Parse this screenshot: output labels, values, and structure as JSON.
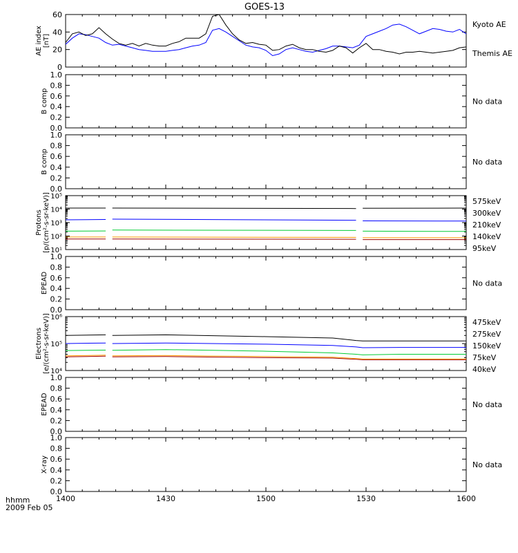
{
  "title": "GOES-13",
  "x_axis": {
    "tick_labels": [
      "1400",
      "1430",
      "1500",
      "1530",
      "1600"
    ],
    "unit_label": "hhmm",
    "date_label": "2009 Feb 05"
  },
  "no_data_label": "No data",
  "chart_data": [
    {
      "type": "line",
      "panel": "ae_index",
      "ylabel": [
        "AE index",
        "[nT]"
      ],
      "ylim": [
        0,
        60
      ],
      "yticks": [
        0,
        20,
        40,
        60
      ],
      "x": [
        "14:00",
        "14:02",
        "14:04",
        "14:06",
        "14:08",
        "14:10",
        "14:12",
        "14:14",
        "14:16",
        "14:18",
        "14:20",
        "14:22",
        "14:24",
        "14:26",
        "14:28",
        "14:30",
        "14:32",
        "14:34",
        "14:36",
        "14:38",
        "14:40",
        "14:42",
        "14:44",
        "14:46",
        "14:48",
        "14:50",
        "14:52",
        "14:54",
        "14:56",
        "14:58",
        "15:00",
        "15:02",
        "15:04",
        "15:06",
        "15:08",
        "15:10",
        "15:12",
        "15:14",
        "15:16",
        "15:18",
        "15:20",
        "15:22",
        "15:24",
        "15:26",
        "15:28",
        "15:30",
        "15:32",
        "15:34",
        "15:36",
        "15:38",
        "15:40",
        "15:42",
        "15:44",
        "15:46",
        "15:48",
        "15:50",
        "15:52",
        "15:54",
        "15:56",
        "15:58",
        "16:00"
      ],
      "series": [
        {
          "name": "Kyoto AE",
          "color": "#0000ff",
          "values": [
            26,
            33,
            38,
            37,
            35,
            33,
            28,
            25,
            26,
            24,
            22,
            20,
            19,
            18,
            18,
            18,
            19,
            20,
            22,
            24,
            25,
            28,
            42,
            44,
            40,
            35,
            30,
            25,
            23,
            22,
            19,
            13,
            15,
            20,
            22,
            20,
            18,
            17,
            19,
            21,
            24,
            24,
            23,
            22,
            25,
            35,
            38,
            41,
            44,
            48,
            49,
            46,
            42,
            38,
            41,
            44,
            43,
            41,
            40,
            43,
            38
          ]
        },
        {
          "name": "Themis AE",
          "color": "#000000",
          "values": [
            28,
            38,
            40,
            36,
            38,
            45,
            38,
            32,
            27,
            25,
            27,
            24,
            27,
            25,
            24,
            24,
            27,
            29,
            33,
            33,
            33,
            38,
            58,
            60,
            48,
            38,
            31,
            27,
            28,
            26,
            25,
            19,
            20,
            24,
            26,
            22,
            20,
            20,
            18,
            17,
            19,
            24,
            22,
            16,
            22,
            27,
            20,
            20,
            18,
            17,
            15,
            17,
            17,
            18,
            17,
            16,
            17,
            18,
            19,
            22,
            23
          ]
        }
      ]
    },
    {
      "type": "line",
      "panel": "b_comp_1",
      "ylabel": [
        "B comp"
      ],
      "ylim": [
        0,
        1
      ],
      "yticks": [
        "0.0",
        "0.2",
        "0.4",
        "0.6",
        "0.8",
        "1.0"
      ],
      "status": "No data",
      "series": []
    },
    {
      "type": "line",
      "panel": "b_comp_2",
      "ylabel": [
        "B comp"
      ],
      "ylim": [
        0,
        1
      ],
      "yticks": [
        "0.0",
        "0.2",
        "0.4",
        "0.6",
        "0.8",
        "1.0"
      ],
      "status": "No data",
      "series": []
    },
    {
      "type": "line",
      "panel": "protons",
      "ylabel": [
        "Protons",
        "[p/(cm²-s-sr-keV)]"
      ],
      "scale": "log",
      "ylim": [
        10,
        100000
      ],
      "ytick_exponents": [
        1,
        2,
        3,
        4,
        5
      ],
      "x": [
        "14:00",
        "14:12",
        "14:14",
        "15:27",
        "15:29",
        "16:00"
      ],
      "series": [
        {
          "name": "575keV",
          "color": "#a00000",
          "values": [
            60,
            60,
            60,
            58,
            55,
            55
          ]
        },
        {
          "name": "300keV",
          "color": "#ff9900",
          "values": [
            85,
            85,
            85,
            80,
            75,
            75
          ]
        },
        {
          "name": "210keV",
          "color": "#00cc33",
          "values": [
            230,
            240,
            280,
            260,
            230,
            220
          ]
        },
        {
          "name": "140keV",
          "color": "#0000ff",
          "values": [
            1600,
            1700,
            1800,
            1500,
            1350,
            1300
          ]
        },
        {
          "name": "95keV",
          "color": "#000000",
          "values": [
            12000,
            12000,
            12000,
            11000,
            11500,
            12000
          ]
        }
      ]
    },
    {
      "type": "line",
      "panel": "epead_1",
      "ylabel": [
        "EPEAD"
      ],
      "ylim": [
        0,
        1
      ],
      "yticks": [
        "0.0",
        "0.2",
        "0.4",
        "0.6",
        "0.8",
        "1.0"
      ],
      "status": "No data",
      "series": []
    },
    {
      "type": "line",
      "panel": "electrons",
      "ylabel": [
        "Electrons",
        "[e/(cm²-s-sr-keV)]"
      ],
      "scale": "log",
      "ylim": [
        10000,
        1000000
      ],
      "ytick_exponents": [
        4,
        5,
        6
      ],
      "x": [
        "14:00",
        "14:12",
        "14:14",
        "14:30",
        "15:00",
        "15:20",
        "15:27",
        "15:29",
        "15:40",
        "16:00"
      ],
      "series": [
        {
          "name": "475keV",
          "color": "#a00000",
          "values": [
            32000,
            34000,
            32000,
            33000,
            30000,
            29000,
            26000,
            25000,
            25000,
            25000
          ]
        },
        {
          "name": "275keV",
          "color": "#ff9900",
          "values": [
            35000,
            37000,
            35000,
            36000,
            33000,
            31000,
            28000,
            27000,
            27000,
            27000
          ]
        },
        {
          "name": "150keV",
          "color": "#00cc33",
          "values": [
            55000,
            57000,
            56000,
            60000,
            52000,
            45000,
            40000,
            38000,
            40000,
            40000
          ]
        },
        {
          "name": "75keV",
          "color": "#0000ff",
          "values": [
            100000,
            105000,
            100000,
            105000,
            95000,
            85000,
            75000,
            70000,
            72000,
            72000
          ]
        },
        {
          "name": "40keV",
          "color": "#000000",
          "values": [
            200000,
            210000,
            200000,
            210000,
            180000,
            160000,
            130000,
            125000,
            125000,
            125000
          ]
        }
      ]
    },
    {
      "type": "line",
      "panel": "epead_2",
      "ylabel": [
        "EPEAD"
      ],
      "ylim": [
        0,
        1
      ],
      "yticks": [
        "0.0",
        "0.2",
        "0.4",
        "0.6",
        "0.8",
        "1.0"
      ],
      "status": "No data",
      "series": []
    },
    {
      "type": "line",
      "panel": "xray",
      "ylabel": [
        "X-ray"
      ],
      "ylim": [
        0,
        1
      ],
      "yticks": [
        "0.0",
        "0.2",
        "0.4",
        "0.6",
        "0.8",
        "1.0"
      ],
      "status": "No data",
      "series": []
    }
  ]
}
